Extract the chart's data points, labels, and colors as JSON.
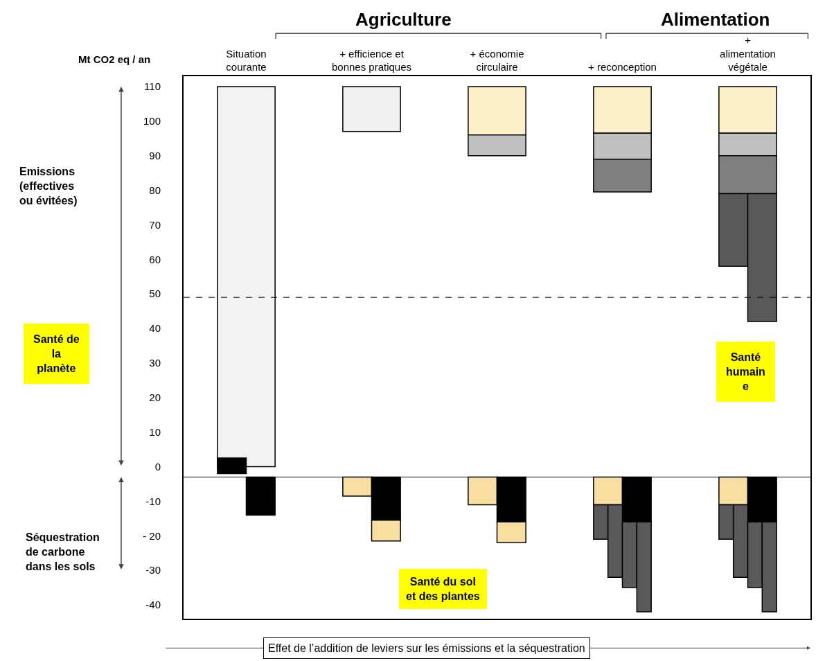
{
  "chart_data": {
    "type": "bar",
    "ylabel": "Mt CO2 eq / an",
    "categories": [
      "Situation\ncourante",
      "+ efficience et\nbonnes pratiques",
      "+ économie\ncirculaire",
      "+ reconception",
      "+\nalimentation\nvégétale"
    ],
    "series": [
      {
        "color": "#595959",
        "base": [
          null,
          null,
          null,
          -11,
          -11
        ],
        "values": [
          null,
          null,
          null,
          -10,
          -10
        ]
      },
      {
        "color": "#595959",
        "base": [
          null,
          null,
          null,
          null,
          58
        ],
        "values": [
          null,
          null,
          null,
          null,
          21
        ]
      },
      {
        "color": "#000000",
        "base": [
          -2,
          null,
          null,
          null,
          null
        ],
        "values": [
          4.5,
          null,
          null,
          null,
          null
        ]
      },
      {
        "color": "#f8dea0",
        "base": [
          null,
          -3,
          -3,
          -3,
          -3
        ],
        "values": [
          null,
          -5.5,
          -8,
          -8,
          -8
        ]
      },
      {
        "color": "#595959",
        "base": [
          null,
          null,
          null,
          -11,
          -11
        ],
        "values": [
          null,
          null,
          null,
          -21,
          -21
        ]
      },
      {
        "color": "#f2f2f2",
        "base": [
          0,
          null,
          null,
          null,
          null
        ],
        "values": [
          110,
          null,
          null,
          null,
          null
        ]
      },
      {
        "color": "#f0f0f0",
        "base": [
          null,
          97,
          null,
          null,
          null
        ],
        "values": [
          null,
          13,
          null,
          null,
          null
        ]
      },
      {
        "color": "#fdefc8",
        "base": [
          null,
          null,
          96,
          96.5,
          96.5
        ],
        "values": [
          null,
          null,
          14,
          13.5,
          13.5
        ]
      },
      {
        "color": "#c0c0c0",
        "base": [
          null,
          null,
          90,
          89,
          90
        ],
        "values": [
          null,
          null,
          6,
          7.5,
          6.5
        ]
      },
      {
        "color": "#7f7f7f",
        "base": [
          null,
          null,
          null,
          79.5,
          79
        ],
        "values": [
          null,
          null,
          null,
          9.5,
          11
        ]
      },
      {
        "color": "#595959",
        "base": [
          null,
          null,
          null,
          -16,
          -16
        ],
        "values": [
          null,
          null,
          null,
          -19,
          -19
        ]
      },
      {
        "color": "#595959",
        "base": [
          null,
          null,
          null,
          null,
          42
        ],
        "values": [
          null,
          null,
          null,
          null,
          37
        ]
      },
      {
        "color": "#000000",
        "base": [
          -3,
          -3,
          -3,
          -3,
          -3
        ],
        "values": [
          -11,
          -12.5,
          -13,
          -13,
          -13
        ]
      },
      {
        "color": "#f8dea0",
        "base": [
          null,
          -15.5,
          -16,
          null,
          null
        ],
        "values": [
          null,
          -6,
          -6,
          null,
          null
        ]
      },
      {
        "color": "#595959",
        "base": [
          null,
          null,
          null,
          -16,
          -16
        ],
        "values": [
          null,
          null,
          null,
          -26,
          -26
        ]
      }
    ],
    "ylim": [
      -44,
      113
    ],
    "yticks": [
      110,
      100,
      90,
      80,
      70,
      60,
      50,
      40,
      30,
      20,
      10,
      0,
      -10,
      {
        "value": -20,
        "label": "- 20"
      },
      -30,
      -40
    ],
    "ref_lines": [
      {
        "axis": "y",
        "value": 49,
        "line_style": "dashed"
      },
      {
        "axis": "y",
        "value": -3,
        "line_style": "solid"
      }
    ],
    "annotations": [
      "Agriculture",
      "Alimentation",
      "Emissions\n(effectives\nou évitées)",
      "Séquestration\nde carbone\ndans les sols",
      "Santé de\nla\nplanète",
      "Santé\nhumain\ne",
      "Santé du sol\net des plantes",
      "Effet de l’addition de leviers sur les émissions et la séquestration"
    ],
    "grid": false
  }
}
